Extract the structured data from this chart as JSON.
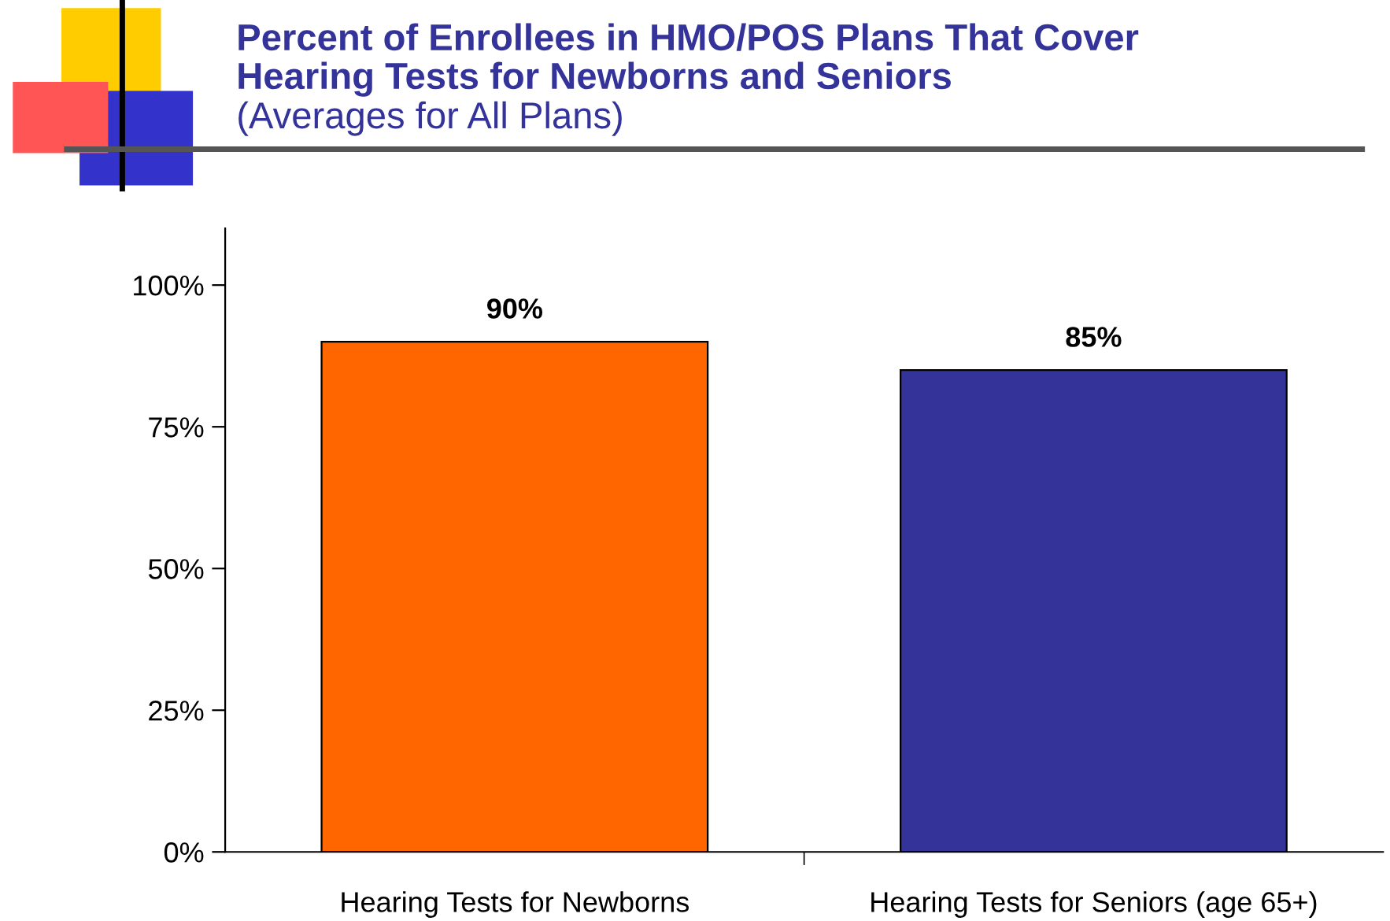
{
  "chart_data": {
    "type": "bar",
    "title": "Percent of Enrollees in HMO/POS Plans That Cover\nHearing Tests for Newborns and Seniors",
    "subtitle": "(Averages for All Plans)",
    "categories": [
      "Hearing Tests for Newborns",
      "Hearing Tests for Seniors (age 65+)"
    ],
    "values": [
      90,
      85
    ],
    "colors": [
      "#ff6600",
      "#333399"
    ],
    "ylim": [
      0,
      110
    ],
    "yticks": [
      {
        "value": 0,
        "label": "0%"
      },
      {
        "value": 25,
        "label": "25%"
      },
      {
        "value": 50,
        "label": "50%"
      },
      {
        "value": 75,
        "label": "75%"
      },
      {
        "value": 100,
        "label": "100%"
      }
    ],
    "value_labels": [
      "90%",
      "85%"
    ],
    "grid": false,
    "legend": false
  }
}
